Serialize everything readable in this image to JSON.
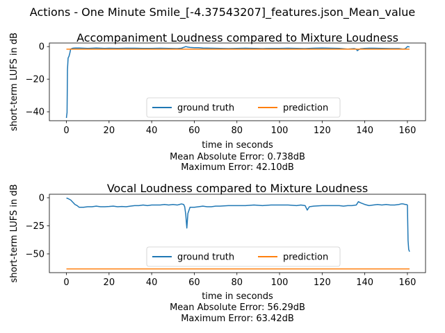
{
  "figure": {
    "suptitle": "Actions - One Minute Smile_[-4.37543207]_features.json_Mean_value"
  },
  "colors": {
    "ground_truth": "#1f77b4",
    "prediction": "#ff7f0e",
    "axis": "#000000",
    "background": "#ffffff"
  },
  "chart_data": [
    {
      "type": "line",
      "title": "Accompaniment Loudness compared to Mixture Loudness",
      "xlabel": "time in seconds",
      "ylabel": "short-term LUFS in dB",
      "xlim": [
        -8,
        168.5
      ],
      "ylim": [
        -45.5,
        2.2
      ],
      "xticks": [
        0,
        20,
        40,
        60,
        80,
        100,
        120,
        140,
        160
      ],
      "xticklabels": [
        "0",
        "20",
        "40",
        "60",
        "80",
        "100",
        "120",
        "140",
        "160"
      ],
      "yticks": [
        0,
        -20,
        -40
      ],
      "yticklabels": [
        "0",
        "−20",
        "−40"
      ],
      "grid": false,
      "legend": {
        "position": "lower-center",
        "ncol": 2,
        "entries": [
          "ground truth",
          "prediction"
        ]
      },
      "annotations": [
        "Mean Absolute Error: 0.738dB",
        "Maximum Error: 42.10dB"
      ],
      "series": [
        {
          "name": "ground truth",
          "x": [
            0,
            0.1,
            0.3,
            0.5,
            0.8,
            1.2,
            1.6,
            2,
            3,
            4,
            6,
            8,
            10,
            12,
            14,
            16,
            18,
            20,
            24,
            28,
            32,
            36,
            40,
            44,
            48,
            52,
            54,
            55,
            56,
            57,
            58,
            60,
            62,
            64,
            68,
            72,
            76,
            80,
            84,
            88,
            92,
            96,
            100,
            104,
            108,
            112,
            116,
            120,
            124,
            128,
            132,
            134,
            135,
            136,
            136.5,
            137,
            138,
            140,
            142,
            144,
            148,
            152,
            156,
            158,
            159,
            160,
            161
          ],
          "y": [
            -43.8,
            -42.5,
            -40.5,
            -14,
            -7,
            -6,
            -4,
            -1.5,
            -1,
            -0.9,
            -0.9,
            -1,
            -1.1,
            -1,
            -0.9,
            -1,
            -1.1,
            -1,
            -1.1,
            -1,
            -1,
            -1.1,
            -1.1,
            -1,
            -1.1,
            -1.2,
            -1,
            -0.5,
            0,
            -0.3,
            -0.5,
            -0.7,
            -0.7,
            -0.9,
            -1,
            -1.1,
            -1.2,
            -1.1,
            -1,
            -1.1,
            -1.2,
            -1.1,
            -1.1,
            -1,
            -1.1,
            -1.2,
            -1,
            -0.9,
            -1,
            -1.1,
            -1.5,
            -1.3,
            -1.2,
            -1.5,
            -2.5,
            -2,
            -1.3,
            -1.1,
            -1,
            -1,
            -1.1,
            -1.2,
            -1.2,
            -1.5,
            -1.3,
            0,
            -0.2
          ]
        },
        {
          "name": "prediction",
          "x": [
            0,
            161
          ],
          "y": [
            -1.6,
            -1.6
          ]
        }
      ]
    },
    {
      "type": "line",
      "title": "Vocal Loudness compared to Mixture Loudness",
      "xlabel": "time in seconds",
      "ylabel": "short-term LUFS in dB",
      "xlim": [
        -8,
        168.5
      ],
      "ylim": [
        -66.7,
        3.1
      ],
      "xticks": [
        0,
        20,
        40,
        60,
        80,
        100,
        120,
        140,
        160
      ],
      "xticklabels": [
        "0",
        "20",
        "40",
        "60",
        "80",
        "100",
        "120",
        "140",
        "160"
      ],
      "yticks": [
        0,
        -25,
        -50
      ],
      "yticklabels": [
        "0",
        "−25",
        "−50"
      ],
      "grid": false,
      "legend": {
        "position": "lower-center",
        "ncol": 2,
        "entries": [
          "ground truth",
          "prediction"
        ]
      },
      "annotations": [
        "Mean Absolute Error: 56.29dB",
        "Maximum Error: 63.42dB"
      ],
      "series": [
        {
          "name": "ground truth",
          "x": [
            0,
            0.5,
            1,
            2,
            3,
            4,
            5,
            6,
            8,
            10,
            12,
            14,
            16,
            18,
            20,
            22,
            24,
            26,
            28,
            30,
            32,
            34,
            36,
            38,
            40,
            42,
            44,
            46,
            48,
            50,
            52,
            53,
            54,
            55,
            55.5,
            56,
            56.5,
            57,
            58,
            60,
            62,
            64,
            66,
            68,
            70,
            72,
            76,
            80,
            84,
            88,
            92,
            96,
            100,
            104,
            108,
            110,
            112,
            113,
            114,
            116,
            120,
            124,
            128,
            130,
            132,
            134,
            136,
            137,
            138,
            140,
            142,
            144,
            146,
            148,
            150,
            152,
            154,
            156,
            157,
            158,
            159,
            159.5,
            160,
            160.3,
            160.6,
            161
          ],
          "y": [
            -0.3,
            -0.5,
            -1,
            -2,
            -4,
            -6,
            -7,
            -8.5,
            -8.5,
            -8,
            -8,
            -7.5,
            -8,
            -8,
            -7.8,
            -7.5,
            -8,
            -7.8,
            -8,
            -7.5,
            -7,
            -7,
            -6.5,
            -7,
            -6.5,
            -6.5,
            -6.5,
            -6,
            -6.5,
            -6,
            -6.5,
            -6,
            -5.5,
            -6,
            -8,
            -15,
            -27,
            -14,
            -8.5,
            -8.5,
            -8,
            -7.5,
            -8,
            -8,
            -7.5,
            -7.5,
            -7,
            -7,
            -7,
            -6.5,
            -7,
            -6.5,
            -6.5,
            -6.5,
            -7,
            -6.5,
            -7,
            -11,
            -8,
            -7.5,
            -7,
            -7,
            -7,
            -7.5,
            -7,
            -7,
            -6.5,
            -3.5,
            -4.5,
            -6,
            -7,
            -6.5,
            -6,
            -6.5,
            -6,
            -6.5,
            -6.5,
            -6,
            -5.5,
            -5.5,
            -6,
            -6,
            -6.5,
            -38,
            -46,
            -48
          ]
        },
        {
          "name": "prediction",
          "x": [
            0,
            161
          ],
          "y": [
            -63.4,
            -63.4
          ]
        }
      ]
    }
  ]
}
